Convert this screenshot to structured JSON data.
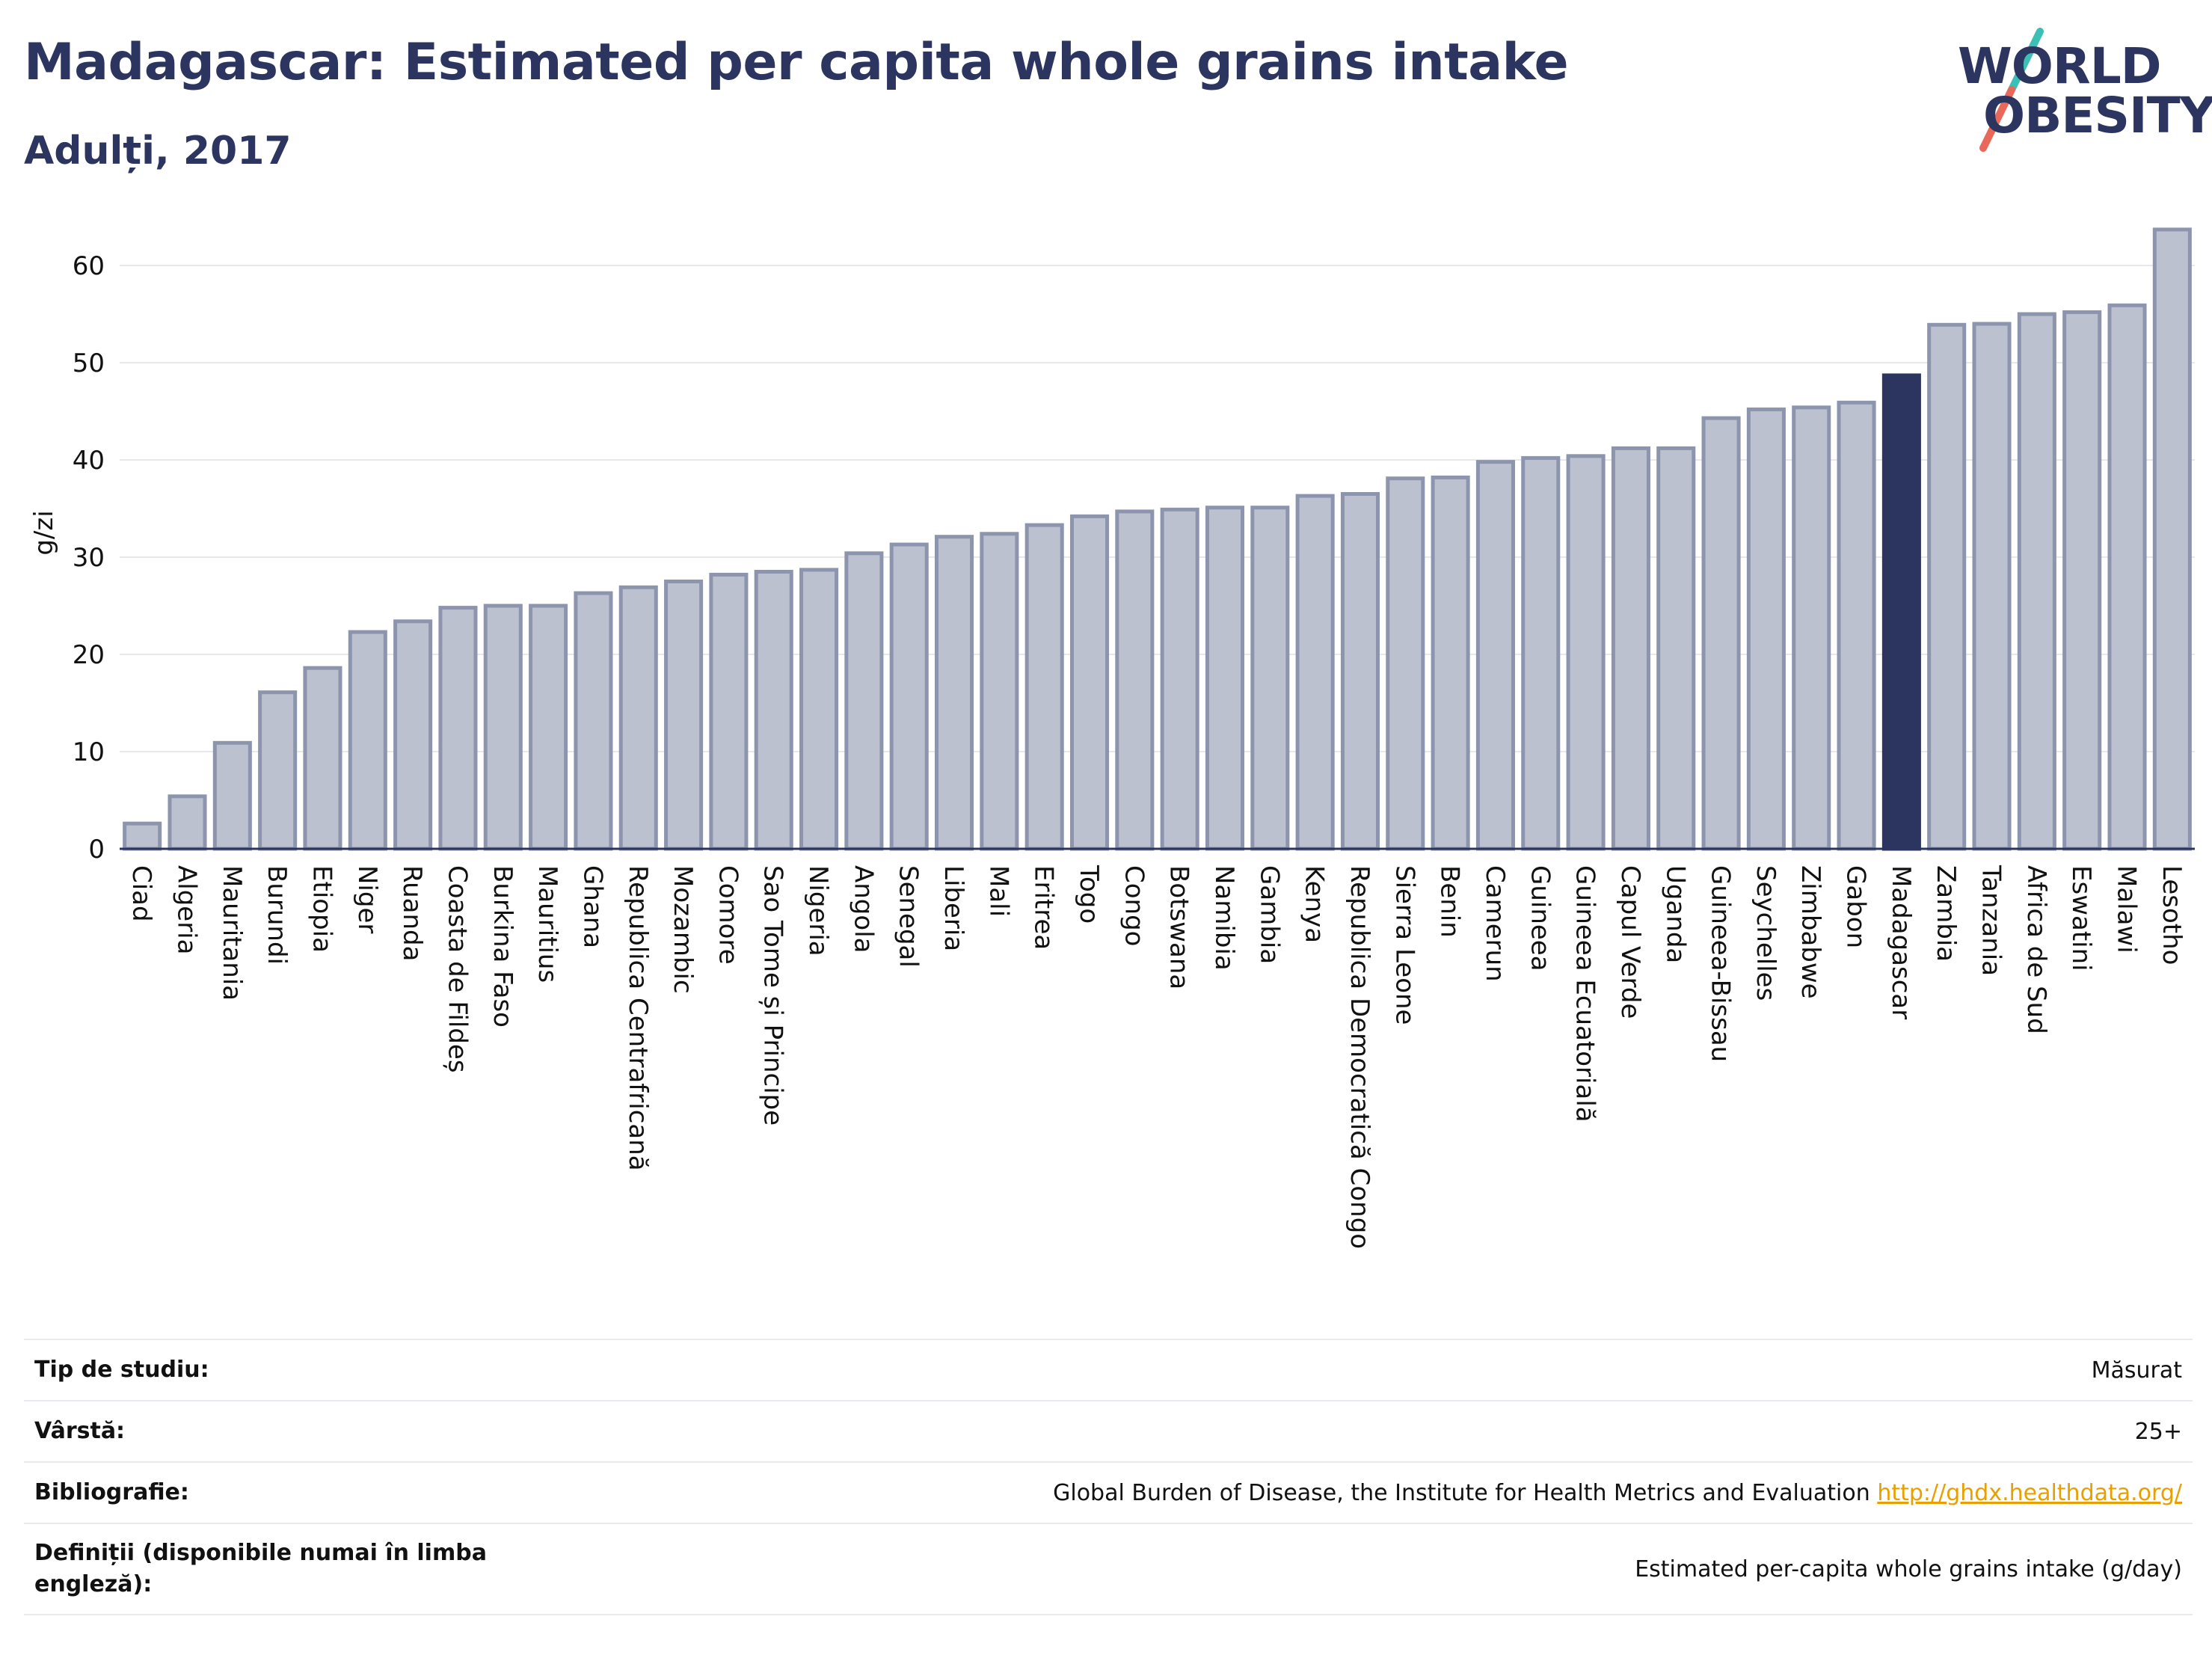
{
  "header": {
    "title": "Madagascar: Estimated per capita whole grains intake",
    "subtitle": "Adulți, 2017"
  },
  "logo": {
    "line1": "WORLD",
    "line2": "OBESITY"
  },
  "chart_data": {
    "type": "bar",
    "title": "Madagascar: Estimated per capita whole grains intake",
    "subtitle": "Adulți, 2017",
    "xlabel": "",
    "ylabel": "g/zi",
    "ylim": [
      0,
      65
    ],
    "yticks": [
      0,
      10,
      20,
      30,
      40,
      50,
      60
    ],
    "grid": true,
    "highlight": "Madagascar",
    "colors": {
      "bar": "#bcc1d0",
      "bar_edge": "#8d94ad",
      "highlight": "#2b3560",
      "grid": "#e6e8ee",
      "axis": "#2b3560"
    },
    "categories": [
      "Ciad",
      "Algeria",
      "Mauritania",
      "Burundi",
      "Etiopia",
      "Niger",
      "Ruanda",
      "Coasta de Fildeș",
      "Burkina Faso",
      "Mauritius",
      "Ghana",
      "Republica Centrafricană",
      "Mozambic",
      "Comore",
      "Sao Tome și Principe",
      "Nigeria",
      "Angola",
      "Senegal",
      "Liberia",
      "Mali",
      "Eritrea",
      "Togo",
      "Congo",
      "Botswana",
      "Namibia",
      "Gambia",
      "Kenya",
      "Republica Democratică Congo",
      "Sierra Leone",
      "Benin",
      "Camerun",
      "Guineea",
      "Guineea Ecuatorială",
      "Capul Verde",
      "Uganda",
      "Guineea-Bissau",
      "Seychelles",
      "Zimbabwe",
      "Gabon",
      "Madagascar",
      "Zambia",
      "Tanzania",
      "Africa de Sud",
      "Eswatini",
      "Malawi",
      "Lesotho"
    ],
    "values": [
      2.6,
      5.4,
      10.9,
      16.1,
      18.6,
      22.3,
      23.4,
      24.8,
      25.0,
      25.0,
      26.3,
      26.9,
      27.5,
      28.2,
      28.5,
      28.7,
      30.4,
      31.3,
      32.1,
      32.4,
      33.3,
      34.2,
      34.7,
      34.9,
      35.1,
      35.1,
      36.3,
      36.5,
      38.1,
      38.2,
      39.8,
      40.2,
      40.4,
      41.2,
      41.2,
      44.3,
      45.2,
      45.4,
      45.9,
      48.7,
      53.9,
      54.0,
      55.0,
      55.2,
      55.9,
      63.7
    ]
  },
  "info": {
    "rows": [
      {
        "key": "Tip de studiu:",
        "value": "Măsurat"
      },
      {
        "key": "Vârstă:",
        "value": "25+"
      },
      {
        "key": "Bibliografie:",
        "value": "Global Burden of Disease, the Institute for Health Metrics and Evaluation",
        "link": "http://ghdx.healthdata.org/"
      },
      {
        "key": "Definiții (disponibile numai în limba engleză):",
        "value": "Estimated per-capita whole grains intake (g/day)"
      }
    ]
  }
}
